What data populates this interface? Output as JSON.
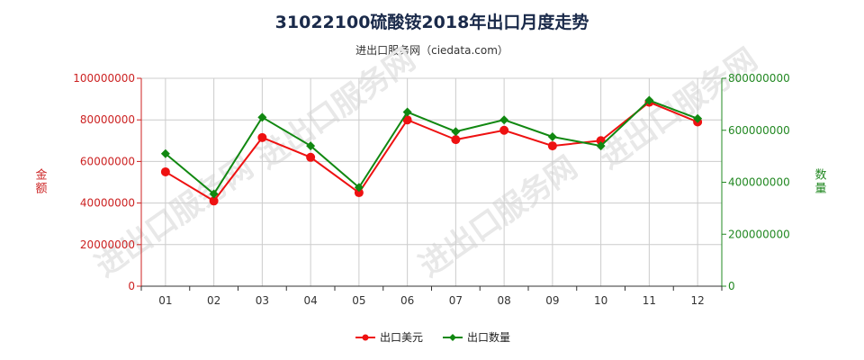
{
  "title": "31022100硫酸铵2018年出口月度走势",
  "subtitle": "进出口服务网（ciedata.com）",
  "chart_data": {
    "type": "line",
    "categories": [
      "01",
      "02",
      "03",
      "04",
      "05",
      "06",
      "07",
      "08",
      "09",
      "10",
      "11",
      "12"
    ],
    "left_axis": {
      "label": "金额",
      "ylim": [
        0,
        100000000
      ],
      "ticks": [
        "0",
        "20000000",
        "40000000",
        "60000000",
        "80000000",
        "100000000"
      ],
      "color": "#cc2222"
    },
    "right_axis": {
      "label": "数量",
      "ylim": [
        0,
        800000000
      ],
      "ticks": [
        "0",
        "200000000",
        "400000000",
        "600000000",
        "800000000"
      ],
      "color": "#228822"
    },
    "series": [
      {
        "name": "出口美元",
        "axis": "left",
        "color": "#ee1111",
        "marker": "circle",
        "values": [
          55000000,
          41000000,
          71500000,
          62000000,
          45000000,
          80000000,
          70500000,
          75000000,
          67500000,
          70000000,
          88500000,
          79000000
        ]
      },
      {
        "name": "出口数量",
        "axis": "right",
        "color": "#118811",
        "marker": "diamond",
        "values": [
          510000000,
          355000000,
          650000000,
          540000000,
          380000000,
          670000000,
          595000000,
          640000000,
          575000000,
          540000000,
          715000000,
          645000000
        ]
      }
    ],
    "grid": true,
    "legend_position": "bottom-center",
    "watermark": "进出口服务网"
  }
}
